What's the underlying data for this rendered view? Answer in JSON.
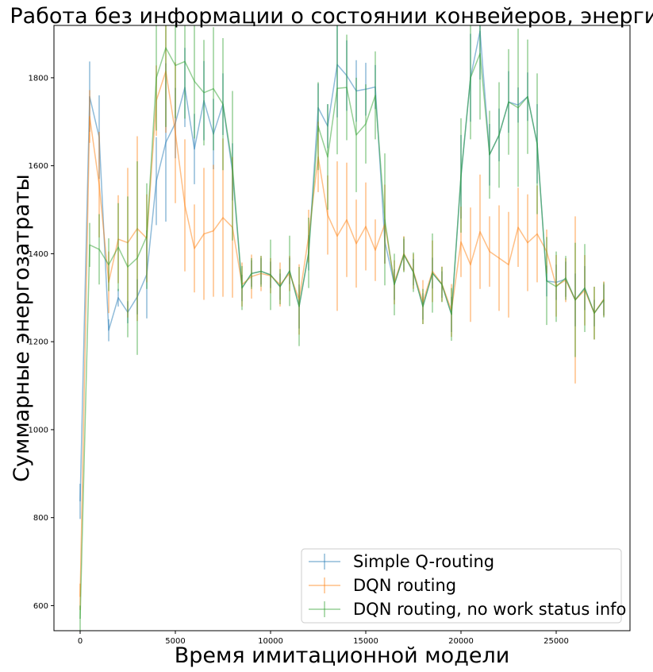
{
  "chart_data": {
    "type": "line",
    "title": "Работа без информации о состоянии конвейеров, энергия",
    "xlabel": "Время имитационной модели",
    "ylabel": "Суммарные энергозатраты",
    "xlim": [
      -1375,
      28875
    ],
    "ylim": [
      543,
      1919
    ],
    "xticks": [
      0,
      5000,
      10000,
      15000,
      20000,
      25000
    ],
    "xtick_labels": [
      "0",
      "5000",
      "10000",
      "15000",
      "20000",
      "25000"
    ],
    "yticks": [
      600,
      800,
      1000,
      1200,
      1400,
      1600,
      1800
    ],
    "ytick_labels": [
      "600",
      "800",
      "1000",
      "1200",
      "1400",
      "1600",
      "1800"
    ],
    "grid": false,
    "legend_position": "lower right",
    "series": [
      {
        "name": "Simple Q-routing",
        "color": "#1f77b4",
        "x": [
          0,
          500,
          1000,
          1500,
          2000,
          2500,
          3000,
          3500,
          4000,
          4500,
          5000,
          5500,
          6000,
          6500,
          7000,
          7500,
          8000,
          8500,
          9000,
          9500,
          10000,
          10500,
          11000,
          11500,
          12000,
          12500,
          13000,
          13500,
          14000,
          14500,
          15000,
          15500,
          16000,
          16500,
          17000,
          17500,
          18000,
          18500,
          19000,
          19500,
          20000,
          20500,
          21000,
          21500,
          22000,
          22500,
          23000,
          23500,
          24000,
          24500,
          25000,
          25500,
          26000,
          26500,
          27000,
          27500
        ],
        "y": [
          837,
          1757,
          1665,
          1226,
          1300,
          1267,
          1302,
          1353,
          1565,
          1653,
          1697,
          1778,
          1638,
          1748,
          1672,
          1740,
          1586,
          1322,
          1355,
          1360,
          1352,
          1325,
          1361,
          1280,
          1402,
          1732,
          1690,
          1830,
          1805,
          1770,
          1774,
          1779,
          1428,
          1330,
          1398,
          1358,
          1280,
          1356,
          1330,
          1262,
          1575,
          1800,
          1906,
          1625,
          1670,
          1745,
          1738,
          1757,
          1650,
          1338,
          1335,
          1342,
          1295,
          1322,
          1265,
          1295
        ],
        "err": [
          40,
          80,
          95,
          25,
          20,
          25,
          40,
          100,
          100,
          180,
          80,
          90,
          80,
          90,
          80,
          70,
          65,
          30,
          30,
          30,
          30,
          30,
          30,
          50,
          40,
          55,
          50,
          120,
          80,
          70,
          60,
          50,
          50,
          35,
          35,
          30,
          30,
          35,
          30,
          40,
          95,
          100,
          110,
          70,
          60,
          70,
          40,
          55,
          90,
          35,
          40,
          40,
          60,
          50,
          30,
          35
        ]
      },
      {
        "name": "DQN routing",
        "color": "#ff7f0e",
        "x": [
          0,
          500,
          1000,
          1500,
          2000,
          2500,
          3000,
          3500,
          4000,
          4500,
          5000,
          5500,
          6000,
          6500,
          7000,
          7500,
          8000,
          8500,
          9000,
          9500,
          10000,
          10500,
          11000,
          11500,
          12000,
          12500,
          13000,
          13500,
          14000,
          14500,
          15000,
          15500,
          16000,
          16500,
          17000,
          17500,
          18000,
          18500,
          19000,
          19500,
          20000,
          20500,
          21000,
          21500,
          22000,
          22500,
          23000,
          23500,
          24000,
          24500,
          25000,
          25500,
          26000,
          26500,
          27000,
          27500
        ],
        "y": [
          620,
          1712,
          1557,
          1335,
          1433,
          1425,
          1457,
          1435,
          1748,
          1815,
          1675,
          1510,
          1412,
          1445,
          1452,
          1482,
          1460,
          1330,
          1348,
          1355,
          1350,
          1330,
          1355,
          1296,
          1440,
          1620,
          1488,
          1440,
          1477,
          1423,
          1462,
          1408,
          1467,
          1335,
          1400,
          1360,
          1290,
          1360,
          1331,
          1271,
          1427,
          1375,
          1450,
          1405,
          1390,
          1375,
          1460,
          1425,
          1445,
          1405,
          1327,
          1340,
          1295,
          1317,
          1265,
          1297
        ],
        "err": [
          30,
          60,
          120,
          70,
          100,
          170,
          210,
          100,
          80,
          140,
          160,
          150,
          100,
          150,
          150,
          180,
          160,
          50,
          50,
          40,
          40,
          50,
          40,
          80,
          60,
          80,
          90,
          170,
          130,
          100,
          100,
          70,
          90,
          50,
          40,
          40,
          50,
          70,
          40,
          60,
          80,
          130,
          130,
          80,
          120,
          120,
          90,
          110,
          110,
          50,
          70,
          50,
          190,
          80,
          60,
          40
        ]
      },
      {
        "name": "DQN routing, no work status info",
        "color": "#2ca02c",
        "x": [
          0,
          500,
          1000,
          1500,
          2000,
          2500,
          3000,
          3500,
          4000,
          4500,
          5000,
          5500,
          6000,
          6500,
          7000,
          7500,
          8000,
          8500,
          9000,
          9500,
          10000,
          10500,
          11000,
          11500,
          12000,
          12500,
          13000,
          13500,
          14000,
          14500,
          15000,
          15500,
          16000,
          16500,
          17000,
          17500,
          18000,
          18500,
          19000,
          19500,
          20000,
          20500,
          21000,
          21500,
          22000,
          22500,
          23000,
          23500,
          24000,
          24500,
          25000,
          25500,
          26000,
          26500,
          27000,
          27500
        ],
        "y": [
          570,
          1420,
          1410,
          1375,
          1415,
          1370,
          1390,
          1440,
          1800,
          1868,
          1828,
          1837,
          1792,
          1766,
          1775,
          1740,
          1600,
          1322,
          1355,
          1360,
          1352,
          1325,
          1361,
          1280,
          1402,
          1690,
          1620,
          1776,
          1778,
          1670,
          1695,
          1760,
          1478,
          1330,
          1398,
          1358,
          1280,
          1356,
          1330,
          1262,
          1578,
          1800,
          1855,
          1625,
          1670,
          1745,
          1732,
          1757,
          1650,
          1338,
          1325,
          1345,
          1295,
          1322,
          1265,
          1295
        ],
        "err": [
          30,
          50,
          80,
          60,
          100,
          160,
          220,
          120,
          120,
          180,
          120,
          130,
          130,
          120,
          140,
          150,
          170,
          50,
          35,
          35,
          80,
          40,
          80,
          90,
          80,
          100,
          120,
          150,
          120,
          130,
          90,
          100,
          150,
          70,
          40,
          45,
          40,
          90,
          40,
          60,
          130,
          140,
          150,
          100,
          120,
          120,
          180,
          130,
          160,
          100,
          80,
          50,
          130,
          100,
          60,
          40
        ]
      }
    ]
  }
}
